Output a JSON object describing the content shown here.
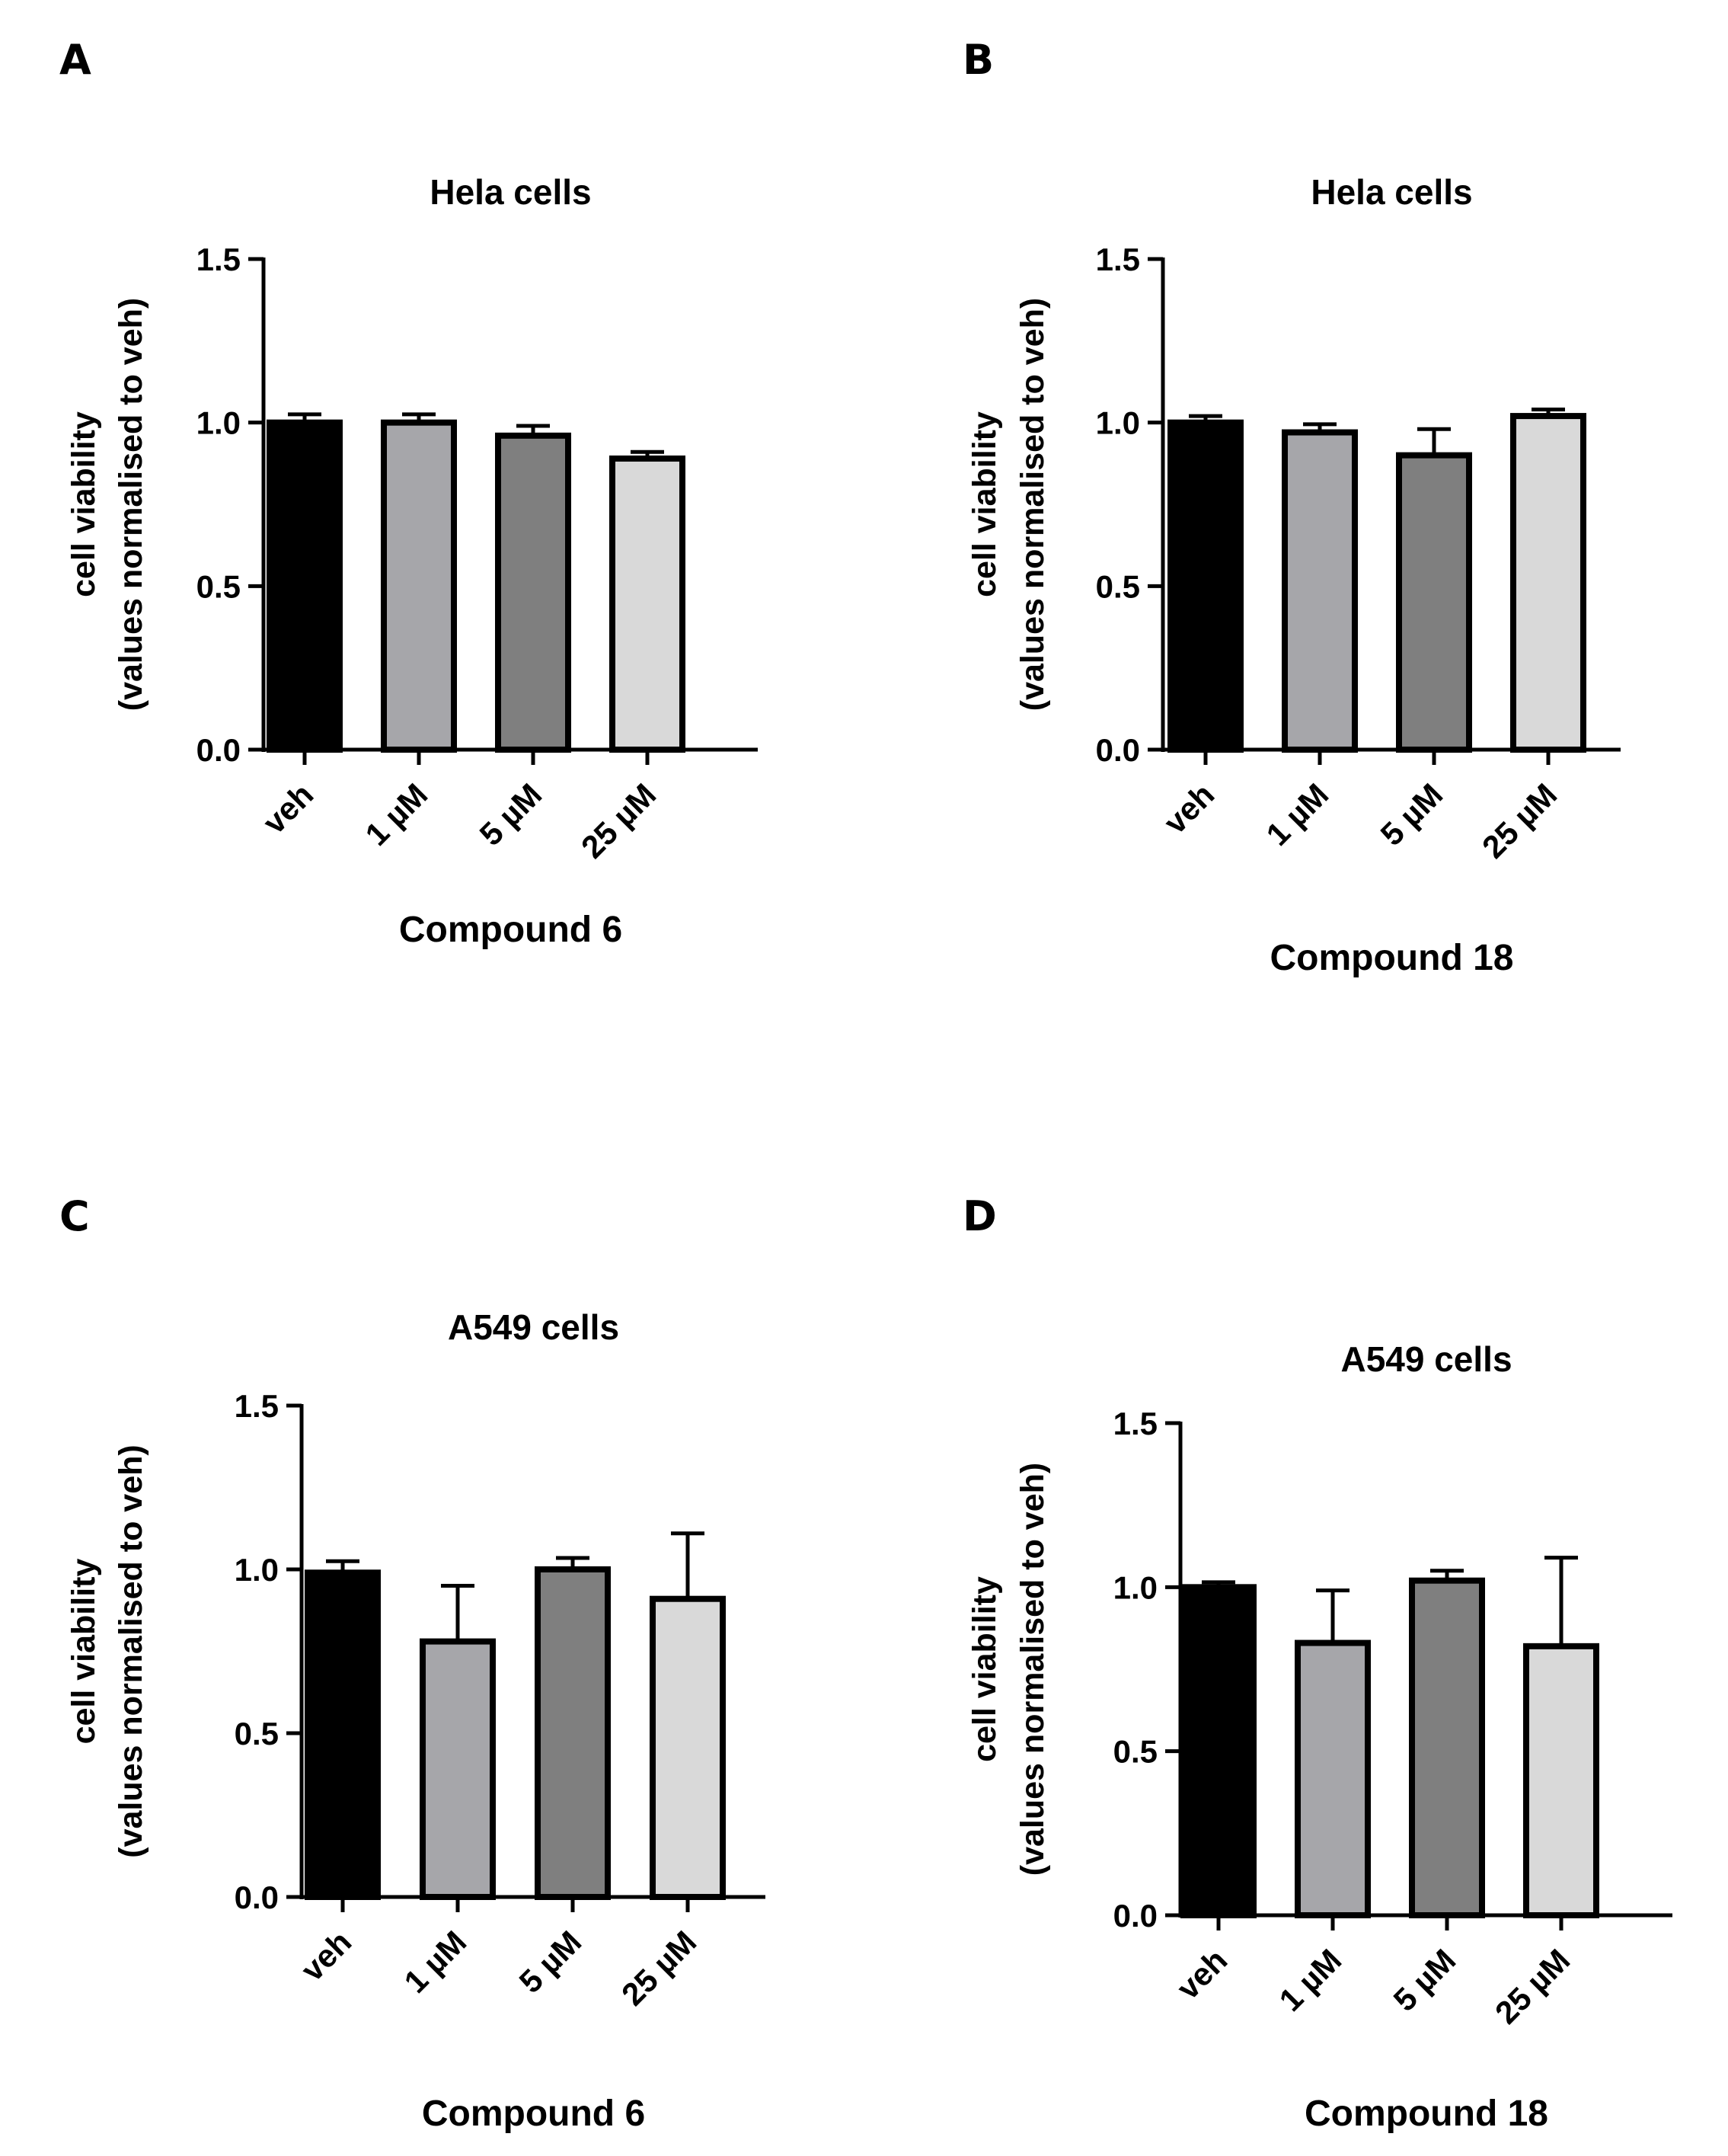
{
  "figure": {
    "panels": [
      {
        "letter": "A"
      },
      {
        "letter": "B"
      },
      {
        "letter": "C"
      },
      {
        "letter": "D"
      }
    ]
  },
  "chart_data": [
    {
      "panel": "A",
      "type": "bar",
      "title": "Hela cells",
      "xlabel": "Compound 6",
      "ylabel_line1": "cell viability",
      "ylabel_line2": "(values normalised to veh)",
      "categories": [
        "veh",
        "1 µM",
        "5 µM",
        "25 µM"
      ],
      "values": [
        1.0,
        1.0,
        0.96,
        0.89
      ],
      "errors": [
        0.025,
        0.025,
        0.03,
        0.02
      ],
      "colors": [
        "#000000",
        "#a6a6aa",
        "#7f7f7f",
        "#d9d9d9"
      ],
      "ylim": [
        0,
        1.5
      ],
      "yticks": [
        0.0,
        0.5,
        1.0,
        1.5
      ],
      "ytick_labels": [
        "0.0",
        "0.5",
        "1.0",
        "1.5"
      ]
    },
    {
      "panel": "B",
      "type": "bar",
      "title": "Hela cells",
      "xlabel": "Compound 18",
      "ylabel_line1": "cell viability",
      "ylabel_line2": "(values normalised to veh)",
      "categories": [
        "veh",
        "1 µM",
        "5 µM",
        "25 µM"
      ],
      "values": [
        1.0,
        0.97,
        0.9,
        1.02
      ],
      "errors": [
        0.02,
        0.025,
        0.08,
        0.02
      ],
      "colors": [
        "#000000",
        "#a6a6aa",
        "#7f7f7f",
        "#d9d9d9"
      ],
      "ylim": [
        0,
        1.5
      ],
      "yticks": [
        0.0,
        0.5,
        1.0,
        1.5
      ],
      "ytick_labels": [
        "0.0",
        "0.5",
        "1.0",
        "1.5"
      ]
    },
    {
      "panel": "C",
      "type": "bar",
      "title": "A549 cells",
      "xlabel": "Compound 6",
      "ylabel_line1": "cell viability",
      "ylabel_line2": "(values normalised to veh)",
      "categories": [
        "veh",
        "1 µM",
        "5 µM",
        "25 µM"
      ],
      "values": [
        0.99,
        0.78,
        1.0,
        0.91
      ],
      "errors": [
        0.035,
        0.17,
        0.035,
        0.2
      ],
      "colors": [
        "#000000",
        "#a6a6aa",
        "#7f7f7f",
        "#d9d9d9"
      ],
      "ylim": [
        0,
        1.5
      ],
      "yticks": [
        0.0,
        0.5,
        1.0,
        1.5
      ],
      "ytick_labels": [
        "0.0",
        "0.5",
        "1.0",
        "1.5"
      ]
    },
    {
      "panel": "D",
      "type": "bar",
      "title": "A549 cells",
      "xlabel": "Compound 18",
      "ylabel_line1": "cell viability",
      "ylabel_line2": "(values normalised to veh)",
      "categories": [
        "veh",
        "1 µM",
        "5 µM",
        "25 µM"
      ],
      "values": [
        1.0,
        0.83,
        1.02,
        0.82
      ],
      "errors": [
        0.015,
        0.16,
        0.03,
        0.27
      ],
      "colors": [
        "#000000",
        "#a6a6aa",
        "#7f7f7f",
        "#d9d9d9"
      ],
      "ylim": [
        0,
        1.5
      ],
      "yticks": [
        0.0,
        0.5,
        1.0,
        1.5
      ],
      "ytick_labels": [
        "0.0",
        "0.5",
        "1.0",
        "1.5"
      ]
    }
  ]
}
